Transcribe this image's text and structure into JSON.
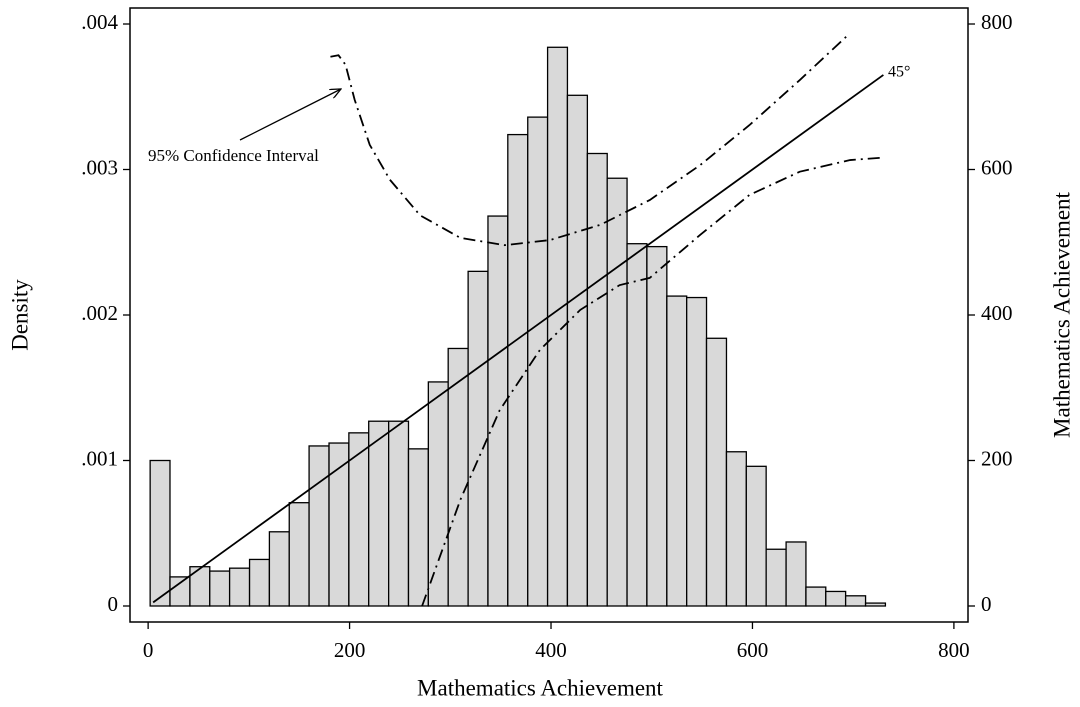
{
  "chart_data": {
    "type": "histogram",
    "xlabel": "Mathematics Achievement",
    "ylabel": "Density",
    "y2label": "Mathematics Achievement",
    "color": "#d9d9d9",
    "edgecolor": "#000000",
    "bins": [
      2,
      21.7,
      41.5,
      61.2,
      80.9,
      100.7,
      120.4,
      140.1,
      159.8,
      179.6,
      199.3,
      219.0,
      238.8,
      258.5,
      278.2,
      297.9,
      317.7,
      337.4,
      357.1,
      376.9,
      396.6,
      416.3,
      436.1,
      455.8,
      475.5,
      495.2,
      515.0,
      534.7,
      554.4,
      574.2,
      593.9,
      613.6,
      633.4,
      653.1,
      672.8,
      692.5,
      712.3,
      732.0
    ],
    "values": [
      0.001,
      0.0002,
      0.00027,
      0.00024,
      0.00026,
      0.00032,
      0.00051,
      0.00071,
      0.0011,
      0.00112,
      0.00119,
      0.00127,
      0.00127,
      0.00108,
      0.00154,
      0.00177,
      0.0023,
      0.00268,
      0.00324,
      0.00336,
      0.00384,
      0.00351,
      0.00311,
      0.00294,
      0.00249,
      0.00247,
      0.00213,
      0.00212,
      0.00184,
      0.00106,
      0.00096,
      0.00039,
      0.00044,
      0.00013,
      0.0001,
      7e-05,
      2e-05
    ],
    "series": [
      {
        "axis": "y2",
        "style": "solid",
        "color": "#000000",
        "x": [
          5,
          730
        ],
        "values": [
          5,
          730
        ]
      },
      {
        "axis": "y2",
        "style": "dashdot",
        "color": "#000000",
        "x": [
          181,
          189,
          196,
          205,
          220,
          240,
          270,
          310,
          354,
          399,
          449,
          498,
          548,
          597,
          647,
          695
        ],
        "values": [
          755,
          757,
          744,
          696,
          634,
          586,
          537,
          506,
          496,
          503,
          524,
          558,
          606,
          661,
          723,
          785
        ]
      },
      {
        "axis": "y2",
        "style": "dashdot",
        "color": "#000000",
        "x": [
          272,
          310,
          349,
          389,
          429,
          468,
          498,
          548,
          597,
          647,
          697,
          727
        ],
        "values": [
          0,
          146,
          269,
          352,
          407,
          441,
          451,
          510,
          565,
          597,
          613,
          616
        ]
      }
    ],
    "annotations": [
      {
        "text": "95% Confidence Interval"
      },
      {
        "text": "45°"
      }
    ],
    "xlim": [
      -18,
      814
    ],
    "ylim": [
      -0.00011,
      0.00411
    ],
    "y2lim": [
      -22,
      822
    ],
    "xticks": [
      0,
      200,
      400,
      600,
      800
    ],
    "yticks": [
      0,
      {
        "value": 0.001,
        "label": ".001"
      },
      {
        "value": 0.002,
        "label": ".002"
      },
      {
        "value": 0.003,
        "label": ".003"
      },
      {
        "value": 0.004,
        "label": ".004"
      }
    ],
    "y2ticks": [
      0,
      200,
      400,
      600,
      800
    ],
    "grid": false
  }
}
